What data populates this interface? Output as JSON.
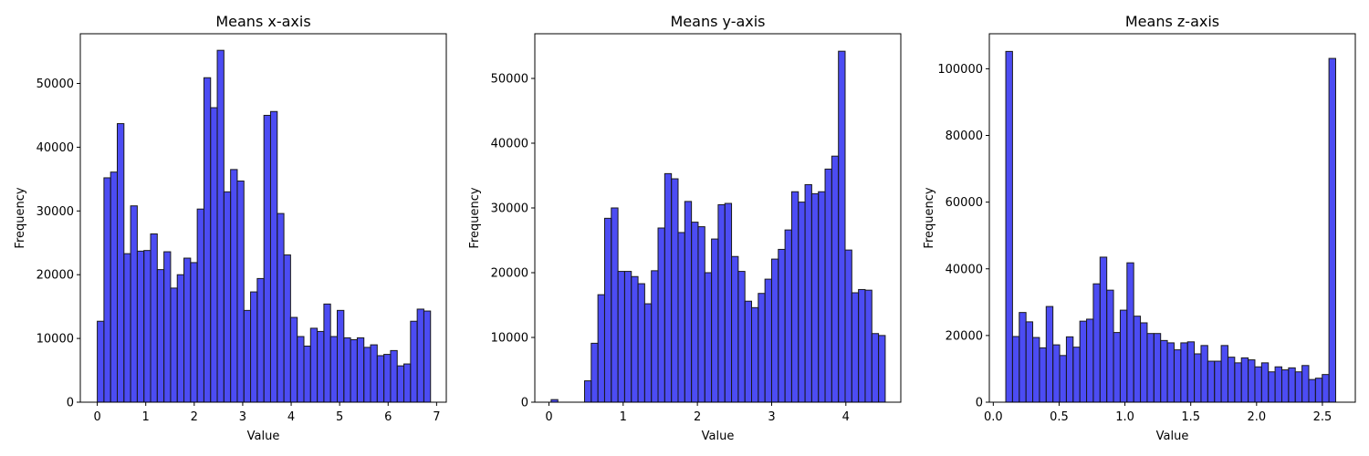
{
  "chart_data": [
    {
      "type": "bar",
      "title": "Means x-axis",
      "xlabel": "Value",
      "ylabel": "Frequency",
      "bar_color": "#0000ee",
      "bar_alpha": 0.7,
      "edge_color": "#1a1a1a",
      "xlim": [
        -0.35,
        7.2
      ],
      "ylim": [
        0,
        57800
      ],
      "xticks": [
        0,
        1,
        2,
        3,
        4,
        5,
        6,
        7
      ],
      "xtick_labels": [
        "0",
        "1",
        "2",
        "3",
        "4",
        "5",
        "6",
        "7"
      ],
      "yticks": [
        0,
        10000,
        20000,
        30000,
        40000,
        50000
      ],
      "ytick_labels": [
        "0",
        "10000",
        "20000",
        "30000",
        "40000",
        "50000"
      ],
      "bin_start": 0.0,
      "bin_width": 0.1375,
      "values": [
        12700,
        35200,
        36100,
        43700,
        23300,
        30800,
        23700,
        23800,
        26400,
        20800,
        23600,
        17900,
        20000,
        22600,
        21900,
        30300,
        50900,
        46200,
        55200,
        33000,
        36500,
        34700,
        14400,
        17300,
        19400,
        45000,
        45600,
        29600,
        23100,
        13300,
        10300,
        8800,
        11600,
        11100,
        15400,
        10300,
        14400,
        10100,
        9800,
        10100,
        8600,
        9000,
        7300,
        7500,
        8100,
        5700,
        6000,
        12700,
        14600,
        14300
      ]
    },
    {
      "type": "bar",
      "title": "Means y-axis",
      "xlabel": "Value",
      "ylabel": "Frequency",
      "bar_color": "#0000ee",
      "bar_alpha": 0.7,
      "edge_color": "#1a1a1a",
      "xlim": [
        -0.19,
        4.74
      ],
      "ylim": [
        0,
        56900
      ],
      "xticks": [
        0,
        1,
        2,
        3,
        4
      ],
      "xtick_labels": [
        "0",
        "1",
        "2",
        "3",
        "4"
      ],
      "yticks": [
        0,
        10000,
        20000,
        30000,
        40000,
        50000
      ],
      "ytick_labels": [
        "0",
        "10000",
        "20000",
        "30000",
        "40000",
        "50000"
      ],
      "bin_start": 0.03,
      "bin_width": 0.09,
      "values": [
        400,
        0,
        0,
        0,
        0,
        3300,
        9100,
        16600,
        28400,
        30000,
        20200,
        20200,
        19400,
        18300,
        15200,
        20300,
        26900,
        35300,
        34500,
        26200,
        31000,
        27800,
        27100,
        20000,
        25200,
        30500,
        30700,
        22500,
        20200,
        15600,
        14600,
        16800,
        19000,
        22100,
        23600,
        26600,
        32500,
        30900,
        33600,
        32200,
        32500,
        36000,
        38000,
        54200,
        23500,
        16900,
        17400,
        17300,
        10600,
        10300
      ]
    },
    {
      "type": "bar",
      "title": "Means z-axis",
      "xlabel": "Value",
      "ylabel": "Frequency",
      "bar_color": "#0000ee",
      "bar_alpha": 0.7,
      "edge_color": "#1a1a1a",
      "xlim": [
        -0.03,
        2.75
      ],
      "ylim": [
        0,
        110500
      ],
      "xticks": [
        0.0,
        0.5,
        1.0,
        1.5,
        2.0,
        2.5
      ],
      "xtick_labels": [
        "0.0",
        "0.5",
        "1.0",
        "1.5",
        "2.0",
        "2.5"
      ],
      "yticks": [
        0,
        20000,
        40000,
        60000,
        80000,
        100000
      ],
      "ytick_labels": [
        "0",
        "20000",
        "40000",
        "60000",
        "80000",
        "100000"
      ],
      "bin_start": 0.095,
      "bin_width": 0.05114,
      "values": [
        105200,
        19700,
        26900,
        24100,
        19400,
        16300,
        28700,
        17200,
        14000,
        19600,
        16500,
        24300,
        24900,
        35500,
        43500,
        33600,
        20900,
        27600,
        41800,
        25800,
        23800,
        20600,
        20600,
        18500,
        17800,
        15700,
        17800,
        18100,
        14500,
        17000,
        12300,
        12300,
        17000,
        13500,
        11800,
        13300,
        12700,
        10600,
        11800,
        9100,
        10600,
        9700,
        10300,
        9100,
        11000,
        6800,
        7200,
        8300,
        103100
      ]
    }
  ]
}
